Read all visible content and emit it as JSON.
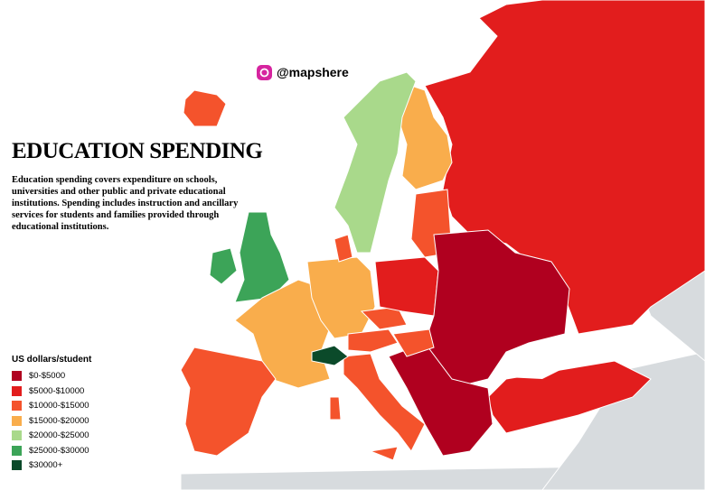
{
  "header": {
    "handle": "@mapshere",
    "title": "EDUCATION SPENDING",
    "description": "Education spending covers expenditure on schools, universities and other public and private educational institutions. Spending includes instruction and ancillary services for students and families provided through educational institutions."
  },
  "legend": {
    "title": "US dollars/student",
    "items": [
      {
        "label": "$0-$5000",
        "color": "#b0001f"
      },
      {
        "label": "$5000-$10000",
        "color": "#e21d1d"
      },
      {
        "label": "$10000-$15000",
        "color": "#f4532c"
      },
      {
        "label": "$15000-$20000",
        "color": "#f9ad4c"
      },
      {
        "label": "$20000-$25000",
        "color": "#a9d98b"
      },
      {
        "label": "$25000-$30000",
        "color": "#3ca458"
      },
      {
        "label": "$30000+",
        "color": "#0b4a2a"
      }
    ]
  }
}
